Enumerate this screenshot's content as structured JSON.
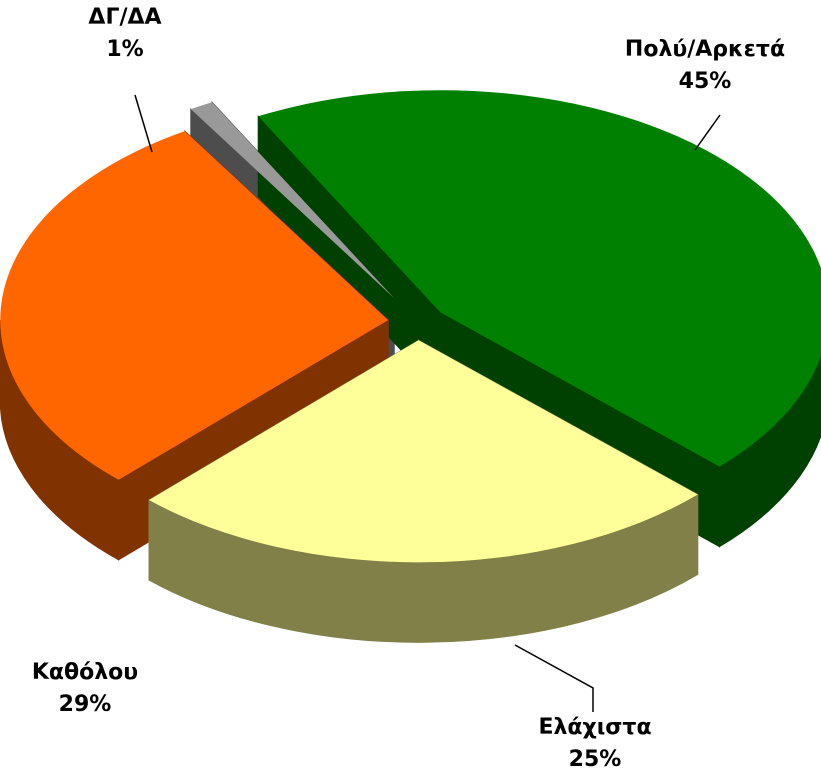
{
  "chart_data": {
    "type": "pie",
    "is_3d": true,
    "categories": [
      "Πολύ/Αρκετά",
      "Ελάχιστα",
      "Καθόλου",
      "ΔΓ/ΔΑ"
    ],
    "values": [
      45,
      25,
      29,
      1
    ],
    "value_labels": [
      "45%",
      "25%",
      "29%",
      "1%"
    ],
    "colors": [
      "#008000",
      "#ffff99",
      "#ff6600",
      "#999999"
    ],
    "side_colors": [
      "#004000",
      "#808048",
      "#803300",
      "#4d4d4d"
    ]
  }
}
